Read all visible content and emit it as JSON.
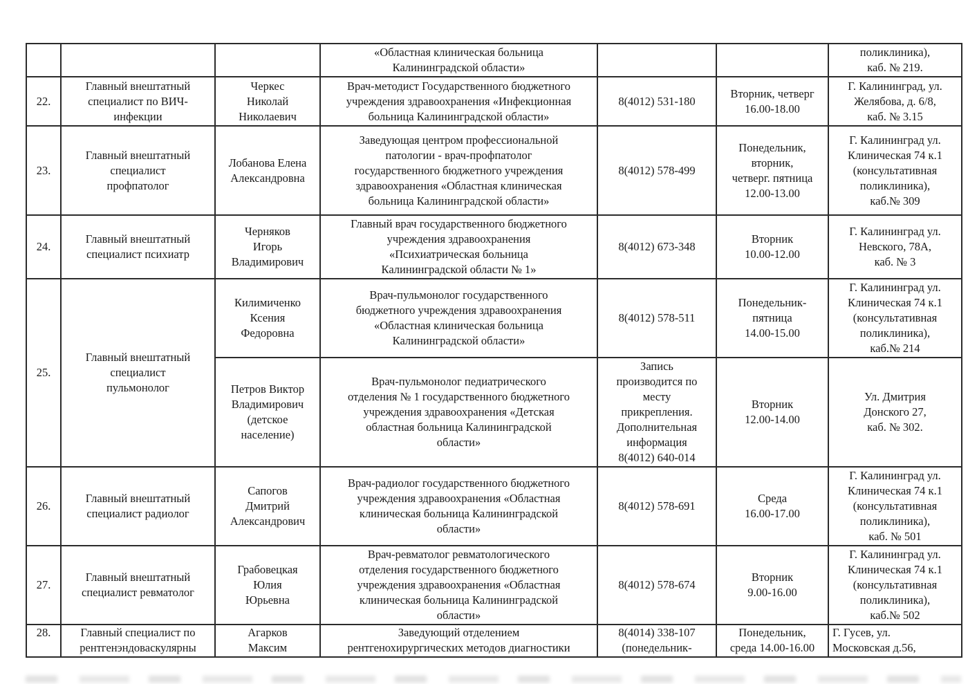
{
  "document": {
    "type": "specialists-registry-table",
    "language": "ru",
    "text_color": "#1a1a1a",
    "border_color": "#2b2b2b",
    "background_color": "#ffffff"
  },
  "table": {
    "rows": [
      {
        "num": "",
        "specialty": "",
        "name": "",
        "description": "«Областная клиническая больница\nКалининградской области»",
        "phone": "",
        "schedule": "",
        "address": "поликлиника),\nкаб. № 219."
      },
      {
        "num": "22.",
        "specialty": "Главный внештатный\nспециалист по ВИЧ-\nинфекции",
        "name": "Черкес\nНиколай\nНиколаевич",
        "description": "Врач-методист Государственного бюджетного\nучреждения здравоохранения «Инфекционная\nбольница Калининградской области»",
        "phone": "8(4012) 531-180",
        "schedule": "Вторник, четверг\n16.00-18.00",
        "address": "Г. Калининград, ул.\nЖелябова, д. 6/8,\nкаб. № 3.15"
      },
      {
        "num": "23.",
        "specialty": "Главный внештатный\nспециалист\nпрофпатолог",
        "name": "Лобанова Елена\nАлександровна",
        "description": "Заведующая центром профессиональной\nпатологии - врач-профпатолог\nгосударственного бюджетного учреждения\nздравоохранения «Областная клиническая\nбольница Калининградской области»",
        "phone": "8(4012) 578-499",
        "schedule": "Понедельник,\nвторник,\nчетверг. пятница\n12.00-13.00",
        "address": "Г. Калининград ул.\nКлиническая 74 к.1\n(консультативная\nполиклиника),\nкаб.№ 309"
      },
      {
        "num": "24.",
        "specialty": "Главный внештатный\nспециалист психиатр",
        "name": "Черняков\nИгорь\nВладимирович",
        "description": "Главный врач государственного бюджетного\nучреждения здравоохранения\n«Психиатрическая больница\nКалининградской области № 1»",
        "phone": "8(4012) 673-348",
        "schedule": "Вторник\n10.00-12.00",
        "address": "Г. Калининград ул.\nНевского, 78А,\nкаб. № 3"
      },
      {
        "num": "25.",
        "specialty": "Главный внештатный\nспециалист\nпульмонолог",
        "name": "Килимиченко\nКсения\nФедоровна",
        "description": "Врач-пульмонолог государственного\nбюджетного учреждения здравоохранения\n«Областная клиническая больница\nКалининградской области»",
        "phone": "8(4012) 578-511",
        "schedule": "Понедельник-\nпятница\n14.00-15.00",
        "address": "Г. Калининград ул.\nКлиническая 74 к.1\n(консультативная\nполиклиника),\nкаб.№ 214"
      },
      {
        "num": "",
        "specialty": "",
        "name": "Петров Виктор\nВладимирович\n(детское\nнаселение)",
        "description": "Врач-пульмонолог педиатрического\nотделения № 1 государственного бюджетного\nучреждения здравоохранения «Детская\nобластная больница Калининградской\nобласти»",
        "phone": "Запись\nпроизводится по\nместу\nприкрепления.\nДополнительная\nинформация\n8(4012) 640-014",
        "schedule": "Вторник\n12.00-14.00",
        "address": "Ул. Дмитрия\nДонского 27,\nкаб. № 302."
      },
      {
        "num": "26.",
        "specialty": "Главный внештатный\nспециалист радиолог",
        "name": "Сапогов\nДмитрий\nАлександрович",
        "description": "Врач-радиолог государственного бюджетного\nучреждения здравоохранения «Областная\nклиническая больница Калининградской\nобласти»",
        "phone": "8(4012) 578-691",
        "schedule": "Среда\n16.00-17.00",
        "address": "Г. Калининград ул.\nКлиническая 74 к.1\n(консультативная\nполиклиника),\nкаб. № 501"
      },
      {
        "num": "27.",
        "specialty": "Главный внештатный\nспециалист ревматолог",
        "name": "Грабовецкая\nЮлия\nЮрьевна",
        "description": "Врач-ревматолог ревматологического\nотделения государственного бюджетного\nучреждения здравоохранения «Областная\nклиническая больница Калининградской\nобласти»",
        "phone": "8(4012) 578-674",
        "schedule": "Вторник\n9.00-16.00",
        "address": "Г. Калининград ул.\nКлиническая 74 к.1\n(консультативная\nполиклиника),\nкаб.№ 502"
      },
      {
        "num": "28.",
        "specialty": "Главный специалист по\nрентгенэндоваскулярны",
        "name": "Агарков\nМаксим",
        "description": "Заведующий отделением\nрентгенохирургических методов диагностики",
        "phone": "8(4014) 338-107\n(понедельник-",
        "schedule": "Понедельник,\nсреда 14.00-16.00",
        "address": "Г. Гусев, ул.\nМосковская д.56,"
      }
    ]
  }
}
